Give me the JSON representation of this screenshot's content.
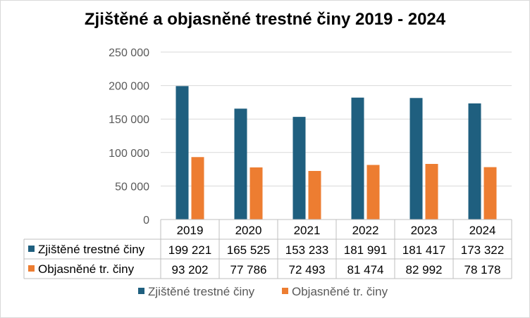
{
  "chart_data": {
    "type": "bar",
    "title": "Zjištěné a objasněné trestné činy 2019 - 2024",
    "categories": [
      "2019",
      "2020",
      "2021",
      "2022",
      "2023",
      "2024"
    ],
    "series": [
      {
        "name": "Zjištěné trestné činy",
        "color": "#1f5f7f",
        "values": [
          199221,
          165525,
          153233,
          181991,
          181417,
          173322
        ],
        "labels": [
          "199 221",
          "165 525",
          "153 233",
          "181 991",
          "181 417",
          "173 322"
        ]
      },
      {
        "name": "Objasněné tr. činy",
        "color": "#ed7d31",
        "values": [
          93202,
          77786,
          72493,
          81474,
          82992,
          78178
        ],
        "labels": [
          "93 202",
          "77 786",
          "72 493",
          "81 474",
          "82 992",
          "78 178"
        ]
      }
    ],
    "ylim": [
      0,
      250000
    ],
    "yticks": [
      0,
      50000,
      100000,
      150000,
      200000,
      250000
    ],
    "ytick_labels": [
      "0",
      "50 000",
      "100 000",
      "150 000",
      "200 000",
      "250 000"
    ],
    "grid": true,
    "legend": "bottom",
    "data_table": true
  }
}
